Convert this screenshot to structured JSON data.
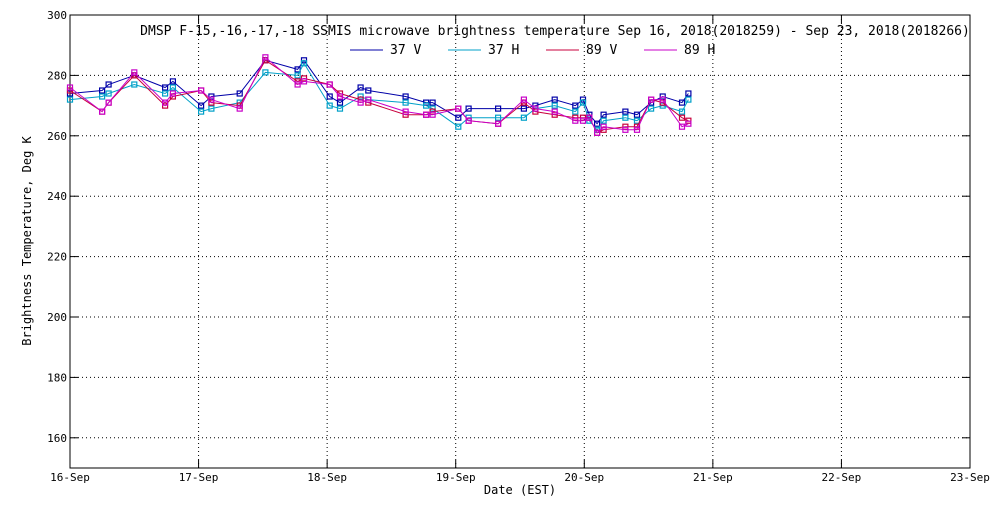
{
  "chart_data": {
    "type": "line",
    "title": "DMSP F-15,-16,-17,-18 SSMIS microwave brightness temperature Sep 16, 2018(2018259) - Sep 23, 2018(2018266)",
    "xlabel": "Date (EST)",
    "ylabel": "Brightness Temperature, Deg K",
    "x_range": [
      "2018-09-16",
      "2018-09-23"
    ],
    "ylim": [
      150,
      300
    ],
    "x_ticks": [
      "16-Sep",
      "17-Sep",
      "18-Sep",
      "19-Sep",
      "20-Sep",
      "21-Sep",
      "22-Sep",
      "23-Sep"
    ],
    "y_ticks": [
      "160",
      "180",
      "200",
      "220",
      "240",
      "260",
      "280",
      "300"
    ],
    "grid": true,
    "legend_position": "top-center",
    "x_unit_note": "x values are days elapsed since 16-Sep 00:00",
    "series": [
      {
        "name": "37 V",
        "color": "#0000a8",
        "points": [
          [
            0.0,
            274
          ],
          [
            0.25,
            275
          ],
          [
            0.3,
            277
          ],
          [
            0.5,
            280
          ],
          [
            0.74,
            276
          ],
          [
            0.8,
            278
          ],
          [
            1.02,
            270
          ],
          [
            1.1,
            273
          ],
          [
            1.32,
            274
          ],
          [
            1.52,
            285
          ],
          [
            1.77,
            282
          ],
          [
            1.82,
            285
          ],
          [
            2.02,
            273
          ],
          [
            2.1,
            271
          ],
          [
            2.26,
            276
          ],
          [
            2.32,
            275
          ],
          [
            2.61,
            273
          ],
          [
            2.77,
            271
          ],
          [
            2.82,
            271
          ],
          [
            3.02,
            266
          ],
          [
            3.1,
            269
          ],
          [
            3.33,
            269
          ],
          [
            3.53,
            269
          ],
          [
            3.62,
            270
          ],
          [
            3.77,
            272
          ],
          [
            3.93,
            270
          ],
          [
            3.99,
            272
          ],
          [
            4.04,
            267
          ],
          [
            4.1,
            264
          ],
          [
            4.15,
            267
          ],
          [
            4.32,
            268
          ],
          [
            4.41,
            267
          ],
          [
            4.52,
            271
          ],
          [
            4.61,
            273
          ],
          [
            4.76,
            271
          ],
          [
            4.81,
            274
          ]
        ]
      },
      {
        "name": "37 H",
        "color": "#00a0c8",
        "points": [
          [
            0.0,
            272
          ],
          [
            0.25,
            273
          ],
          [
            0.3,
            274
          ],
          [
            0.5,
            277
          ],
          [
            0.74,
            274
          ],
          [
            0.8,
            276
          ],
          [
            1.02,
            268
          ],
          [
            1.1,
            269
          ],
          [
            1.32,
            271
          ],
          [
            1.52,
            281
          ],
          [
            1.77,
            280
          ],
          [
            1.82,
            284
          ],
          [
            2.02,
            270
          ],
          [
            2.1,
            269
          ],
          [
            2.26,
            273
          ],
          [
            2.32,
            272
          ],
          [
            2.61,
            271
          ],
          [
            2.77,
            270
          ],
          [
            2.82,
            269
          ],
          [
            3.02,
            263
          ],
          [
            3.1,
            266
          ],
          [
            3.33,
            266
          ],
          [
            3.53,
            266
          ],
          [
            3.62,
            269
          ],
          [
            3.77,
            270
          ],
          [
            3.93,
            268
          ],
          [
            3.99,
            271
          ],
          [
            4.04,
            265
          ],
          [
            4.1,
            262
          ],
          [
            4.15,
            265
          ],
          [
            4.32,
            266
          ],
          [
            4.41,
            265
          ],
          [
            4.52,
            269
          ],
          [
            4.61,
            270
          ],
          [
            4.76,
            268
          ],
          [
            4.81,
            272
          ]
        ]
      },
      {
        "name": "89 V",
        "color": "#c8003c",
        "points": [
          [
            0.0,
            275
          ],
          [
            0.25,
            268
          ],
          [
            0.3,
            271
          ],
          [
            0.5,
            280
          ],
          [
            0.74,
            270
          ],
          [
            0.8,
            273
          ],
          [
            1.02,
            275
          ],
          [
            1.1,
            271
          ],
          [
            1.32,
            270
          ],
          [
            1.52,
            285
          ],
          [
            1.77,
            278
          ],
          [
            1.82,
            279
          ],
          [
            2.02,
            277
          ],
          [
            2.1,
            274
          ],
          [
            2.26,
            272
          ],
          [
            2.32,
            271
          ],
          [
            2.61,
            267
          ],
          [
            2.77,
            267
          ],
          [
            2.82,
            268
          ],
          [
            3.02,
            269
          ],
          [
            3.1,
            265
          ],
          [
            3.33,
            264
          ],
          [
            3.53,
            271
          ],
          [
            3.62,
            268
          ],
          [
            3.77,
            267
          ],
          [
            3.93,
            266
          ],
          [
            3.99,
            266
          ],
          [
            4.04,
            266
          ],
          [
            4.1,
            261
          ],
          [
            4.15,
            262
          ],
          [
            4.32,
            263
          ],
          [
            4.41,
            263
          ],
          [
            4.52,
            272
          ],
          [
            4.61,
            271
          ],
          [
            4.76,
            266
          ],
          [
            4.81,
            265
          ]
        ]
      },
      {
        "name": "89 H",
        "color": "#c800c8",
        "points": [
          [
            0.0,
            276
          ],
          [
            0.25,
            268
          ],
          [
            0.3,
            271
          ],
          [
            0.5,
            281
          ],
          [
            0.74,
            271
          ],
          [
            0.8,
            274
          ],
          [
            1.02,
            275
          ],
          [
            1.1,
            272
          ],
          [
            1.32,
            269
          ],
          [
            1.52,
            286
          ],
          [
            1.77,
            277
          ],
          [
            1.82,
            278
          ],
          [
            2.02,
            277
          ],
          [
            2.1,
            273
          ],
          [
            2.26,
            271
          ],
          [
            2.32,
            272
          ],
          [
            2.61,
            268
          ],
          [
            2.77,
            267
          ],
          [
            2.82,
            267
          ],
          [
            3.02,
            269
          ],
          [
            3.1,
            265
          ],
          [
            3.33,
            264
          ],
          [
            3.53,
            272
          ],
          [
            3.62,
            269
          ],
          [
            3.77,
            268
          ],
          [
            3.93,
            265
          ],
          [
            3.99,
            265
          ],
          [
            4.04,
            266
          ],
          [
            4.1,
            261
          ],
          [
            4.15,
            263
          ],
          [
            4.32,
            262
          ],
          [
            4.41,
            262
          ],
          [
            4.52,
            272
          ],
          [
            4.61,
            272
          ],
          [
            4.76,
            263
          ],
          [
            4.81,
            264
          ]
        ]
      }
    ]
  }
}
